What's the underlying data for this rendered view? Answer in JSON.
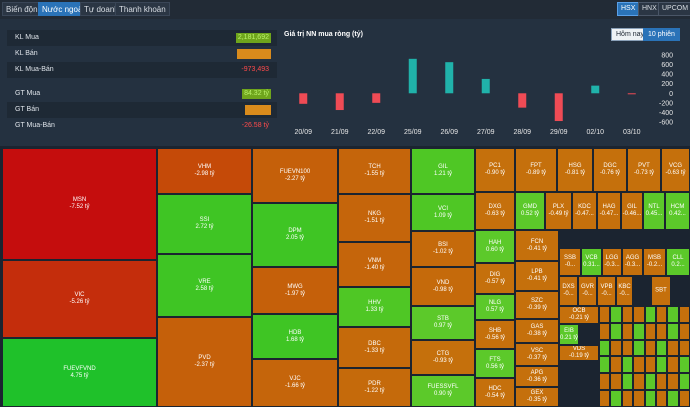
{
  "tabs": [
    {
      "label": "Biến động",
      "active": false
    },
    {
      "label": "Nước ngoài",
      "active": true
    },
    {
      "label": "Tự doanh",
      "active": false
    },
    {
      "label": "Thanh khoản",
      "active": false
    }
  ],
  "exchanges": [
    {
      "label": "HSX",
      "active": true
    },
    {
      "label": "HNX",
      "active": false
    },
    {
      "label": "UPCOM",
      "active": false
    }
  ],
  "stats": {
    "kl_mua": {
      "label": "KL Mua",
      "value": "2,181,692"
    },
    "kl_ban": {
      "label": "KL Bán",
      "value": ""
    },
    "kl_mua_ban": {
      "label": "KL Mua-Bán",
      "value": "-973,493"
    },
    "gt_mua": {
      "label": "GT Mua",
      "value": "84.32 tỷ"
    },
    "gt_ban": {
      "label": "GT Bán",
      "value": ""
    },
    "gt_mua_ban": {
      "label": "GT Mua-Bán",
      "value": "-26.58 tỷ"
    }
  },
  "colors": {
    "positive": "#20b2aa",
    "negative": "#ef4b55",
    "buy_bar": "#6fa51c",
    "sell_bar": "#d98b1c"
  },
  "chart": {
    "title": "Giá trị NN mua ròng (tỷ)",
    "period_today": "Hôm nay",
    "period_10": "10 phiên"
  },
  "chart_data": {
    "type": "bar",
    "categories": [
      "20/09",
      "21/09",
      "22/09",
      "25/09",
      "26/09",
      "27/09",
      "28/09",
      "29/09",
      "02/10",
      "03/10"
    ],
    "values": [
      -220,
      -350,
      -200,
      720,
      650,
      300,
      -300,
      -580,
      160,
      -20
    ],
    "ylim": [
      -600,
      800
    ],
    "yticks": [
      800,
      600,
      400,
      200,
      0,
      -200,
      -400,
      -600
    ],
    "grid": false
  },
  "treemap": [
    {
      "t": "MSN",
      "v": "-7.52 tỷ",
      "c": "#c50d0d",
      "x": 2,
      "y": 148,
      "w": 155,
      "h": 112
    },
    {
      "t": "VIC",
      "v": "-5.26 tỷ",
      "c": "#c42d0c",
      "x": 2,
      "y": 260,
      "w": 155,
      "h": 78
    },
    {
      "t": "FUEVFVND",
      "v": "4.75 tỷ",
      "c": "#1fc12a",
      "x": 2,
      "y": 338,
      "w": 155,
      "h": 69
    },
    {
      "t": "VHM",
      "v": "-2.98 tỷ",
      "c": "#c54a08",
      "x": 157,
      "y": 148,
      "w": 95,
      "h": 46
    },
    {
      "t": "SSI",
      "v": "2.72 tỷ",
      "c": "#3fc524",
      "x": 157,
      "y": 194,
      "w": 95,
      "h": 60
    },
    {
      "t": "VRE",
      "v": "2.58 tỷ",
      "c": "#3fc524",
      "x": 157,
      "y": 254,
      "w": 95,
      "h": 63
    },
    {
      "t": "PVD",
      "v": "-2.37 tỷ",
      "c": "#c5600a",
      "x": 157,
      "y": 317,
      "w": 95,
      "h": 90
    },
    {
      "t": "FUEVN100",
      "v": "-2.27 tỷ",
      "c": "#c5600a",
      "x": 252,
      "y": 148,
      "w": 86,
      "h": 55
    },
    {
      "t": "DPM",
      "v": "2.05 tỷ",
      "c": "#3fc524",
      "x": 252,
      "y": 203,
      "w": 86,
      "h": 64
    },
    {
      "t": "MWG",
      "v": "-1.97 tỷ",
      "c": "#c5600a",
      "x": 252,
      "y": 267,
      "w": 86,
      "h": 47
    },
    {
      "t": "HDB",
      "v": "1.68 tỷ",
      "c": "#3fc524",
      "x": 252,
      "y": 314,
      "w": 86,
      "h": 45
    },
    {
      "t": "VJC",
      "v": "-1.66 tỷ",
      "c": "#c5650b",
      "x": 252,
      "y": 359,
      "w": 86,
      "h": 48
    },
    {
      "t": "TCH",
      "v": "-1.55 tỷ",
      "c": "#c5650b",
      "x": 338,
      "y": 148,
      "w": 73,
      "h": 46
    },
    {
      "t": "NKG",
      "v": "-1.51 tỷ",
      "c": "#c5650b",
      "x": 338,
      "y": 194,
      "w": 73,
      "h": 48
    },
    {
      "t": "VNM",
      "v": "-1.40 tỷ",
      "c": "#c5650b",
      "x": 338,
      "y": 242,
      "w": 73,
      "h": 45
    },
    {
      "t": "HHV",
      "v": "1.33 tỷ",
      "c": "#4fc725",
      "x": 338,
      "y": 287,
      "w": 73,
      "h": 40
    },
    {
      "t": "DBC",
      "v": "-1.33 tỷ",
      "c": "#c56a0b",
      "x": 338,
      "y": 327,
      "w": 73,
      "h": 41
    },
    {
      "t": "PDR",
      "v": "-1.22 tỷ",
      "c": "#c56a0b",
      "x": 338,
      "y": 368,
      "w": 73,
      "h": 39
    },
    {
      "t": "GIL",
      "v": "1.21 tỷ",
      "c": "#4fc725",
      "x": 411,
      "y": 148,
      "w": 64,
      "h": 46
    },
    {
      "t": "VCI",
      "v": "1.09 tỷ",
      "c": "#4fc725",
      "x": 411,
      "y": 194,
      "w": 64,
      "h": 37
    },
    {
      "t": "BSI",
      "v": "-1.02 tỷ",
      "c": "#c56a0b",
      "x": 411,
      "y": 231,
      "w": 64,
      "h": 36
    },
    {
      "t": "VND",
      "v": "-0.98 tỷ",
      "c": "#c56a0b",
      "x": 411,
      "y": 267,
      "w": 64,
      "h": 39
    },
    {
      "t": "STB",
      "v": "0.97 tỷ",
      "c": "#5cc92a",
      "x": 411,
      "y": 306,
      "w": 64,
      "h": 34
    },
    {
      "t": "CTG",
      "v": "-0.93 tỷ",
      "c": "#c5700c",
      "x": 411,
      "y": 340,
      "w": 64,
      "h": 35
    },
    {
      "t": "FUESSVFL",
      "v": "0.90 tỷ",
      "c": "#5cc92a",
      "x": 411,
      "y": 375,
      "w": 64,
      "h": 32
    },
    {
      "t": "PC1",
      "v": "-0.90 tỷ",
      "c": "#c5700c",
      "x": 475,
      "y": 148,
      "w": 40,
      "h": 44
    },
    {
      "t": "FPT",
      "v": "-0.89 tỷ",
      "c": "#c5700c",
      "x": 515,
      "y": 148,
      "w": 42,
      "h": 44
    },
    {
      "t": "HSG",
      "v": "-0.81 tỷ",
      "c": "#c5700c",
      "x": 557,
      "y": 148,
      "w": 36,
      "h": 44
    },
    {
      "t": "DGC",
      "v": "-0.76 tỷ",
      "c": "#c5700c",
      "x": 593,
      "y": 148,
      "w": 34,
      "h": 44
    },
    {
      "t": "PVT",
      "v": "-0.73 tỷ",
      "c": "#c5700c",
      "x": 627,
      "y": 148,
      "w": 34,
      "h": 44
    },
    {
      "t": "VCG",
      "v": "-0.63 tỷ",
      "c": "#c5700c",
      "x": 661,
      "y": 148,
      "w": 29,
      "h": 44
    },
    {
      "t": "DXG",
      "v": "-0.63 tỷ",
      "c": "#c5700c",
      "x": 475,
      "y": 192,
      "w": 40,
      "h": 38
    },
    {
      "t": "GMD",
      "v": "0.52 tỷ",
      "c": "#5cc92a",
      "x": 515,
      "y": 192,
      "w": 30,
      "h": 38
    },
    {
      "t": "PLX",
      "v": "-0.49 tỷ",
      "c": "#c5700c",
      "x": 545,
      "y": 192,
      "w": 27,
      "h": 38
    },
    {
      "t": "KDC",
      "v": "-0.47...",
      "c": "#c5700c",
      "x": 572,
      "y": 192,
      "w": 25,
      "h": 38
    },
    {
      "t": "HAG",
      "v": "-0.47...",
      "c": "#c5700c",
      "x": 597,
      "y": 192,
      "w": 24,
      "h": 38
    },
    {
      "t": "GIL",
      "v": "-0.46...",
      "c": "#c5700c",
      "x": 621,
      "y": 192,
      "w": 22,
      "h": 38
    },
    {
      "t": "NTL",
      "v": "0.45...",
      "c": "#5cc92a",
      "x": 643,
      "y": 192,
      "w": 22,
      "h": 38
    },
    {
      "t": "HCM",
      "v": "0.42...",
      "c": "#5cc92a",
      "x": 665,
      "y": 192,
      "w": 25,
      "h": 38
    },
    {
      "t": "HAH",
      "v": "0.60 tỷ",
      "c": "#5cc92a",
      "x": 475,
      "y": 230,
      "w": 40,
      "h": 33
    },
    {
      "t": "DIG",
      "v": "-0.57 tỷ",
      "c": "#c5700c",
      "x": 475,
      "y": 263,
      "w": 40,
      "h": 31
    },
    {
      "t": "NLG",
      "v": "0.57 tỷ",
      "c": "#5cc92a",
      "x": 475,
      "y": 294,
      "w": 40,
      "h": 26
    },
    {
      "t": "SHB",
      "v": "-0.56 tỷ",
      "c": "#c5700c",
      "x": 475,
      "y": 320,
      "w": 40,
      "h": 29
    },
    {
      "t": "FTS",
      "v": "0.56 tỷ",
      "c": "#5cc92a",
      "x": 475,
      "y": 349,
      "w": 40,
      "h": 29
    },
    {
      "t": "HDC",
      "v": "-0.54 tỷ",
      "c": "#c5700c",
      "x": 475,
      "y": 378,
      "w": 40,
      "h": 29
    },
    {
      "t": "FCN",
      "v": "-0.41 tỷ",
      "c": "#c5700c",
      "x": 515,
      "y": 230,
      "w": 44,
      "h": 31
    },
    {
      "t": "LPB",
      "v": "-0.41 tỷ",
      "c": "#c5700c",
      "x": 515,
      "y": 261,
      "w": 44,
      "h": 30
    },
    {
      "t": "SZC",
      "v": "-0.39 tỷ",
      "c": "#c5700c",
      "x": 515,
      "y": 291,
      "w": 44,
      "h": 28
    },
    {
      "t": "GAS",
      "v": "-0.38 tỷ",
      "c": "#c5700c",
      "x": 515,
      "y": 319,
      "w": 44,
      "h": 24
    },
    {
      "t": "VSC",
      "v": "-0.37 tỷ",
      "c": "#c5700c",
      "x": 515,
      "y": 343,
      "w": 44,
      "h": 23
    },
    {
      "t": "APG",
      "v": "-0.36 tỷ",
      "c": "#c5700c",
      "x": 515,
      "y": 366,
      "w": 44,
      "h": 21
    },
    {
      "t": "GEX",
      "v": "-0.35 tỷ",
      "c": "#c5700c",
      "x": 515,
      "y": 387,
      "w": 44,
      "h": 20
    },
    {
      "t": "SSB",
      "v": "-0...",
      "c": "#c5700c",
      "x": 559,
      "y": 248,
      "w": 22,
      "h": 28
    },
    {
      "t": "VCB",
      "v": "0.31...",
      "c": "#5cc92a",
      "x": 581,
      "y": 248,
      "w": 21,
      "h": 28
    },
    {
      "t": "LGG",
      "v": "-0.3...",
      "c": "#c5700c",
      "x": 602,
      "y": 248,
      "w": 20,
      "h": 28
    },
    {
      "t": "AGG",
      "v": "-0.3...",
      "c": "#c5700c",
      "x": 622,
      "y": 248,
      "w": 21,
      "h": 28
    },
    {
      "t": "MSB",
      "v": "-0.2...",
      "c": "#c5700c",
      "x": 643,
      "y": 248,
      "w": 23,
      "h": 28
    },
    {
      "t": "CLL",
      "v": "0.2...",
      "c": "#5cc92a",
      "x": 666,
      "y": 248,
      "w": 24,
      "h": 28
    },
    {
      "t": "DXS",
      "v": "-0...",
      "c": "#c5700c",
      "x": 559,
      "y": 276,
      "w": 19,
      "h": 30
    },
    {
      "t": "GVR",
      "v": "-0...",
      "c": "#c5700c",
      "x": 578,
      "y": 276,
      "w": 19,
      "h": 30
    },
    {
      "t": "VPB",
      "v": "-0...",
      "c": "#c5700c",
      "x": 597,
      "y": 276,
      "w": 19,
      "h": 30
    },
    {
      "t": "KBC",
      "v": "-0...",
      "c": "#c5700c",
      "x": 616,
      "y": 276,
      "w": 17,
      "h": 30
    },
    {
      "t": "SBT",
      "v": "",
      "c": "#c5700c",
      "x": 651,
      "y": 276,
      "w": 20,
      "h": 30
    },
    {
      "t": "OCB",
      "v": "-0.21 tỷ",
      "c": "#c5700c",
      "x": 559,
      "y": 306,
      "w": 40,
      "h": 18
    },
    {
      "t": "EIB",
      "v": "0.21 tỷ",
      "c": "#5cc92a",
      "x": 559,
      "y": 324,
      "w": 20,
      "h": 21
    },
    {
      "t": "VDS",
      "v": "-0.19 tỷ",
      "c": "#c5700c",
      "x": 559,
      "y": 345,
      "w": 40,
      "h": 16
    }
  ]
}
